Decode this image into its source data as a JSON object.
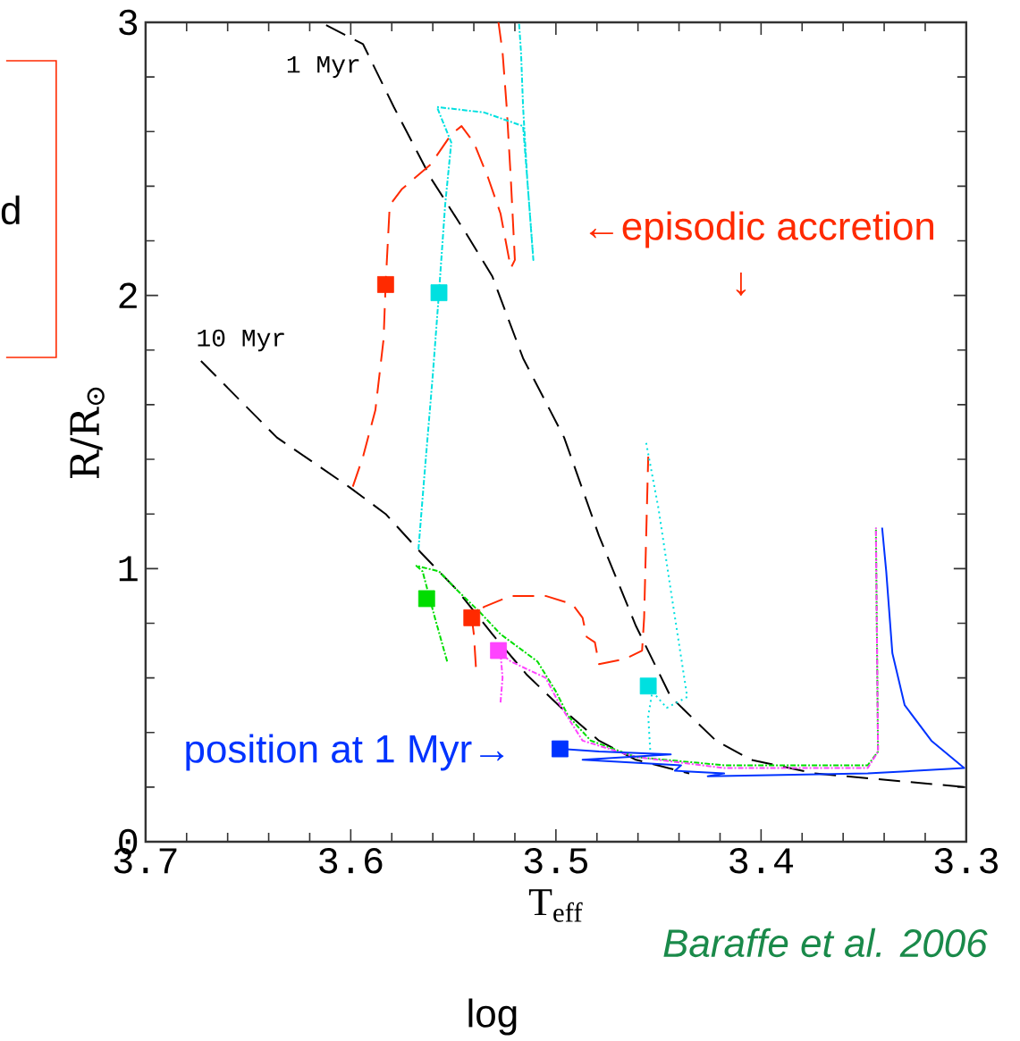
{
  "chart_data": {
    "type": "line",
    "xlabel": "T$_{eff}$",
    "ylabel": "R/R$_{⊙}$",
    "xlim": [
      3.7,
      3.3
    ],
    "ylim": [
      0,
      3
    ],
    "xticks": [
      3.7,
      3.6,
      3.5,
      3.4,
      3.3
    ],
    "yticks": [
      0,
      1,
      2,
      3
    ],
    "annotations": [
      "←episodic accretion",
      "↓",
      "position at 1 Myr→",
      "Baraffe et al. 2006",
      "log",
      "d"
    ],
    "series": [
      {
        "name": "1 Myr",
        "color": "#000000",
        "line_style": "dashed",
        "x": [
          3.612,
          3.594,
          3.579,
          3.561,
          3.544,
          3.531,
          3.516,
          3.496,
          3.479,
          3.461,
          3.444,
          3.422,
          3.405,
          3.374,
          3.33,
          3.3
        ],
        "values": [
          2.99,
          2.92,
          2.69,
          2.43,
          2.23,
          2.07,
          1.77,
          1.48,
          1.12,
          0.79,
          0.53,
          0.37,
          0.3,
          0.25,
          0.22,
          0.2
        ]
      },
      {
        "name": "10 Myr",
        "color": "#000000",
        "line_style": "dashed",
        "x": [
          3.673,
          3.636,
          3.601,
          3.583,
          3.566,
          3.548,
          3.531,
          3.514,
          3.496,
          3.479,
          3.461,
          3.435
        ],
        "values": [
          1.76,
          1.48,
          1.3,
          1.2,
          1.06,
          0.92,
          0.76,
          0.61,
          0.48,
          0.37,
          0.3,
          0.25
        ]
      },
      {
        "color": "#ff2a00",
        "line_style": "dashed",
        "x": [
          3.599,
          3.594,
          3.588,
          3.584,
          3.583,
          3.581,
          3.575,
          3.561,
          3.551,
          3.546,
          3.54,
          3.533,
          3.527,
          3.522,
          3.52,
          3.522,
          3.524,
          3.526,
          3.528
        ],
        "values": [
          1.3,
          1.41,
          1.58,
          1.84,
          2.04,
          2.33,
          2.39,
          2.48,
          2.59,
          2.62,
          2.56,
          2.43,
          2.3,
          2.1,
          2.13,
          2.43,
          2.69,
          2.89,
          3.0
        ]
      },
      {
        "color": "#00e0e0",
        "line_style": "dashdot",
        "x": [
          3.567,
          3.564,
          3.56,
          3.557,
          3.554,
          3.551,
          3.558,
          3.535,
          3.516,
          3.514,
          3.511,
          3.514,
          3.516,
          3.517,
          3.518
        ],
        "values": [
          1.07,
          1.35,
          1.71,
          2.01,
          2.33,
          2.56,
          2.69,
          2.67,
          2.62,
          2.43,
          2.13,
          2.43,
          2.69,
          2.89,
          3.0
        ]
      },
      {
        "color": "#ff2a00",
        "line_style": "dashed",
        "x": [
          3.539,
          3.54,
          3.541,
          3.535,
          3.522,
          3.505,
          3.492,
          3.487,
          3.485,
          3.481,
          3.479,
          3.466,
          3.458,
          3.457,
          3.456,
          3.455
        ],
        "values": [
          0.64,
          0.76,
          0.82,
          0.86,
          0.9,
          0.9,
          0.87,
          0.82,
          0.75,
          0.73,
          0.65,
          0.67,
          0.7,
          0.82,
          1.12,
          1.41
        ]
      },
      {
        "color": "#00e0e0",
        "line_style": "dotted",
        "x": [
          3.456,
          3.45,
          3.444,
          3.436,
          3.446,
          3.453,
          3.455,
          3.454
        ],
        "values": [
          1.46,
          1.22,
          0.92,
          0.53,
          0.49,
          0.55,
          0.46,
          0.33
        ]
      },
      {
        "color": "#00dd00",
        "line_style": "dashdot",
        "x": [
          3.553,
          3.559,
          3.565,
          3.568,
          3.557,
          3.548,
          3.537,
          3.527,
          3.509,
          3.5,
          3.494,
          3.483,
          3.461,
          3.418,
          3.348,
          3.343,
          3.344,
          3.344
        ],
        "values": [
          0.66,
          0.82,
          0.99,
          1.01,
          0.99,
          0.92,
          0.84,
          0.76,
          0.66,
          0.55,
          0.46,
          0.37,
          0.31,
          0.28,
          0.28,
          0.33,
          1.12,
          1.15
        ]
      },
      {
        "color": "#ff44ff",
        "line_style": "dashdot",
        "x": [
          3.527,
          3.526,
          3.527,
          3.522,
          3.505,
          3.498,
          3.487,
          3.461,
          3.418,
          3.348,
          3.343,
          3.344,
          3.344
        ],
        "values": [
          0.51,
          0.6,
          0.69,
          0.66,
          0.6,
          0.5,
          0.37,
          0.31,
          0.27,
          0.27,
          0.33,
          1.12,
          1.15
        ]
      },
      {
        "color": "#0033ff",
        "line_style": "solid",
        "x": [
          3.498,
          3.479,
          3.444,
          3.487,
          3.439,
          3.442,
          3.418,
          3.426,
          3.348,
          3.301,
          3.317,
          3.33,
          3.336,
          3.339,
          3.341
        ],
        "values": [
          0.34,
          0.33,
          0.32,
          0.3,
          0.28,
          0.26,
          0.25,
          0.24,
          0.25,
          0.27,
          0.37,
          0.5,
          0.69,
          0.99,
          1.15
        ]
      },
      {
        "type": "scatter",
        "marker": "square",
        "x": [
          3.583,
          3.557,
          3.563,
          3.541,
          3.528,
          3.455,
          3.498
        ],
        "values": [
          2.04,
          2.01,
          0.89,
          0.82,
          0.7,
          0.57,
          0.34
        ],
        "colors": [
          "#ff2a00",
          "#00e0e0",
          "#00dd00",
          "#ff2a00",
          "#ff44ff",
          "#00e0e0",
          "#0033ff"
        ]
      }
    ]
  }
}
